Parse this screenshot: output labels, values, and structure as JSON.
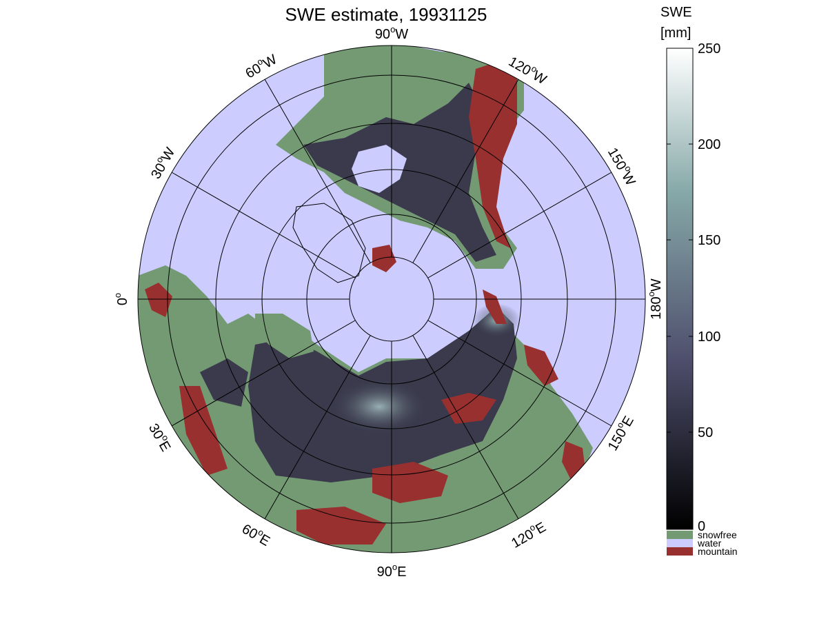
{
  "title": "SWE estimate, 19931125",
  "colorbar": {
    "label_line1": "SWE",
    "label_line2": "[mm]",
    "ticks": [
      "250",
      "200",
      "150",
      "100",
      "50",
      "0"
    ],
    "range": [
      0,
      250
    ],
    "colors": {
      "low": "#000000",
      "mid": "#4e4e6c",
      "high_mid": "#86a8a8",
      "top": "#ffffff"
    }
  },
  "legend": [
    {
      "label": "snowfree",
      "color": "#749a74"
    },
    {
      "label": "water",
      "color": "#ccccff"
    },
    {
      "label": "mountain",
      "color": "#983030"
    }
  ],
  "map": {
    "projection": "north polar stereographic",
    "ocean_color": "#ccccff",
    "land_snowfree_color": "#749a74",
    "mountain_color": "#983030",
    "snow_color": "#3a3a4c",
    "longitude_labels": [
      {
        "deg": "90",
        "hemi": "W"
      },
      {
        "deg": "120",
        "hemi": "W"
      },
      {
        "deg": "150",
        "hemi": "W"
      },
      {
        "deg": "180",
        "hemi": "W"
      },
      {
        "deg": "150",
        "hemi": "E"
      },
      {
        "deg": "120",
        "hemi": "E"
      },
      {
        "deg": "90",
        "hemi": "E"
      },
      {
        "deg": "60",
        "hemi": "E"
      },
      {
        "deg": "30",
        "hemi": "E"
      },
      {
        "deg": "0",
        "hemi": ""
      },
      {
        "deg": "30",
        "hemi": "W"
      },
      {
        "deg": "60",
        "hemi": "W"
      }
    ]
  }
}
